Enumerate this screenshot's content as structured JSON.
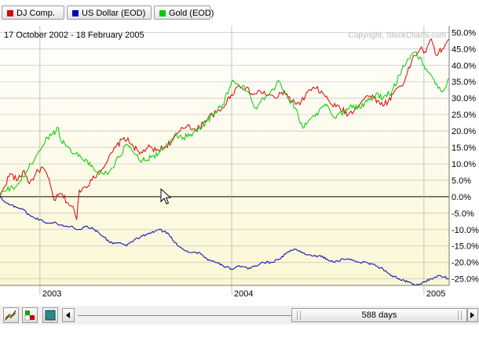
{
  "legend": [
    {
      "label": "DJ Comp.",
      "color": "#dd0000"
    },
    {
      "label": "US Dollar (EOD)",
      "color": "#0000b4"
    },
    {
      "label": "Gold (EOD)",
      "color": "#00cc00"
    }
  ],
  "header": {
    "date_range": "17 October 2002 - 18 February 2005",
    "copyright": "Copyright, StockCharts.com"
  },
  "toolbar": {
    "period_label": "588 days",
    "left_arrow_icon": "arrow-left-icon",
    "right_arrow_icon": "arrow-right-icon",
    "tool_icons": [
      "line-chart-icon",
      "color-swatch-icon",
      "square-icon"
    ]
  },
  "chart_data": {
    "type": "line",
    "title": "",
    "xlabel": "",
    "ylabel": "",
    "x_range": [
      "2002-10-17",
      "2005-02-18"
    ],
    "x_tick_labels": [
      "2003",
      "2004",
      "2005"
    ],
    "y_ticks": [
      50,
      45,
      40,
      35,
      30,
      25,
      20,
      15,
      10,
      5,
      0,
      -5,
      -10,
      -15,
      -20,
      -25
    ],
    "y_tick_labels": [
      "50.0%",
      "45.0%",
      "40.0%",
      "35.0%",
      "30.0%",
      "25.0%",
      "20.0%",
      "15.0%",
      "10.0%",
      "5.0%",
      "0.0%",
      "-5.0%",
      "-10.0%",
      "-15.0%",
      "-20.0%",
      "-25.0%"
    ],
    "ylim": [
      -27,
      52
    ],
    "grid": true,
    "legend_position": "top-left",
    "series": [
      {
        "name": "DJ Comp.",
        "color": "#dd0000",
        "points": [
          [
            "2002-10-17",
            0
          ],
          [
            "2002-10-25",
            3
          ],
          [
            "2002-11-05",
            7
          ],
          [
            "2002-11-20",
            5
          ],
          [
            "2002-12-02",
            8
          ],
          [
            "2002-12-12",
            4
          ],
          [
            "2002-12-24",
            7
          ],
          [
            "2003-01-06",
            9
          ],
          [
            "2003-01-16",
            6
          ],
          [
            "2003-01-28",
            -1
          ],
          [
            "2003-02-10",
            1
          ],
          [
            "2003-02-24",
            -2
          ],
          [
            "2003-03-07",
            -4
          ],
          [
            "2003-03-12",
            -7
          ],
          [
            "2003-03-17",
            2
          ],
          [
            "2003-03-28",
            3
          ],
          [
            "2003-04-10",
            5
          ],
          [
            "2003-04-25",
            8
          ],
          [
            "2003-05-10",
            11
          ],
          [
            "2003-05-25",
            15
          ],
          [
            "2003-06-10",
            18
          ],
          [
            "2003-06-25",
            16
          ],
          [
            "2003-07-10",
            13
          ],
          [
            "2003-07-25",
            15
          ],
          [
            "2003-08-10",
            14
          ],
          [
            "2003-08-25",
            15
          ],
          [
            "2003-09-10",
            17
          ],
          [
            "2003-09-25",
            20
          ],
          [
            "2003-10-10",
            22
          ],
          [
            "2003-10-25",
            20
          ],
          [
            "2003-11-10",
            23
          ],
          [
            "2003-11-25",
            25
          ],
          [
            "2003-12-10",
            26
          ],
          [
            "2003-12-31",
            31
          ],
          [
            "2004-01-15",
            34
          ],
          [
            "2004-01-28",
            33
          ],
          [
            "2004-02-10",
            31
          ],
          [
            "2004-02-25",
            32
          ],
          [
            "2004-03-10",
            31
          ],
          [
            "2004-03-25",
            30
          ],
          [
            "2004-04-10",
            32
          ],
          [
            "2004-04-25",
            29
          ],
          [
            "2004-05-10",
            28
          ],
          [
            "2004-05-25",
            32
          ],
          [
            "2004-06-10",
            33
          ],
          [
            "2004-06-25",
            31
          ],
          [
            "2004-07-10",
            28
          ],
          [
            "2004-07-25",
            27
          ],
          [
            "2004-08-10",
            25
          ],
          [
            "2004-08-25",
            27
          ],
          [
            "2004-09-10",
            30
          ],
          [
            "2004-09-25",
            31
          ],
          [
            "2004-10-10",
            28
          ],
          [
            "2004-10-25",
            29
          ],
          [
            "2004-11-10",
            33
          ],
          [
            "2004-11-25",
            35
          ],
          [
            "2004-12-10",
            42
          ],
          [
            "2004-12-25",
            45
          ],
          [
            "2005-01-05",
            44
          ],
          [
            "2005-01-15",
            48
          ],
          [
            "2005-01-25",
            43
          ],
          [
            "2005-02-05",
            45
          ],
          [
            "2005-02-18",
            48
          ]
        ]
      },
      {
        "name": "US Dollar (EOD)",
        "color": "#0000b4",
        "points": [
          [
            "2002-10-17",
            0
          ],
          [
            "2002-10-30",
            -2
          ],
          [
            "2002-11-15",
            -3
          ],
          [
            "2002-12-01",
            -4
          ],
          [
            "2002-12-15",
            -6
          ],
          [
            "2003-01-01",
            -7
          ],
          [
            "2003-01-15",
            -8
          ],
          [
            "2003-02-01",
            -8
          ],
          [
            "2003-02-15",
            -9
          ],
          [
            "2003-03-01",
            -9
          ],
          [
            "2003-03-15",
            -10
          ],
          [
            "2003-04-01",
            -9
          ],
          [
            "2003-04-15",
            -10
          ],
          [
            "2003-05-01",
            -12
          ],
          [
            "2003-05-15",
            -14
          ],
          [
            "2003-06-01",
            -14
          ],
          [
            "2003-06-15",
            -15
          ],
          [
            "2003-07-01",
            -13
          ],
          [
            "2003-07-15",
            -12
          ],
          [
            "2003-08-01",
            -11
          ],
          [
            "2003-08-15",
            -10
          ],
          [
            "2003-09-01",
            -11
          ],
          [
            "2003-09-15",
            -14
          ],
          [
            "2003-10-01",
            -16
          ],
          [
            "2003-10-15",
            -17
          ],
          [
            "2003-11-01",
            -17
          ],
          [
            "2003-11-15",
            -19
          ],
          [
            "2003-12-01",
            -20
          ],
          [
            "2003-12-15",
            -21
          ],
          [
            "2004-01-01",
            -22
          ],
          [
            "2004-01-15",
            -21
          ],
          [
            "2004-02-01",
            -22
          ],
          [
            "2004-02-15",
            -21
          ],
          [
            "2004-03-01",
            -20
          ],
          [
            "2004-03-15",
            -20
          ],
          [
            "2004-04-01",
            -19
          ],
          [
            "2004-04-15",
            -17
          ],
          [
            "2004-05-01",
            -16
          ],
          [
            "2004-05-15",
            -17
          ],
          [
            "2004-06-01",
            -18
          ],
          [
            "2004-06-15",
            -18
          ],
          [
            "2004-07-01",
            -19
          ],
          [
            "2004-07-15",
            -20
          ],
          [
            "2004-08-01",
            -19
          ],
          [
            "2004-08-15",
            -19
          ],
          [
            "2004-09-01",
            -20
          ],
          [
            "2004-09-15",
            -20
          ],
          [
            "2004-10-01",
            -21
          ],
          [
            "2004-10-15",
            -22
          ],
          [
            "2004-11-01",
            -24
          ],
          [
            "2004-11-15",
            -25
          ],
          [
            "2004-12-01",
            -26
          ],
          [
            "2004-12-15",
            -27
          ],
          [
            "2005-01-01",
            -26
          ],
          [
            "2005-01-15",
            -25
          ],
          [
            "2005-02-01",
            -24
          ],
          [
            "2005-02-18",
            -25
          ]
        ]
      },
      {
        "name": "Gold (EOD)",
        "color": "#00cc00",
        "points": [
          [
            "2002-10-17",
            1
          ],
          [
            "2002-10-30",
            2
          ],
          [
            "2002-11-15",
            3
          ],
          [
            "2002-12-01",
            6
          ],
          [
            "2002-12-15",
            10
          ],
          [
            "2003-01-01",
            14
          ],
          [
            "2003-01-15",
            18
          ],
          [
            "2003-01-25",
            19
          ],
          [
            "2003-02-05",
            21
          ],
          [
            "2003-02-10",
            17
          ],
          [
            "2003-02-25",
            15
          ],
          [
            "2003-03-10",
            13
          ],
          [
            "2003-03-20",
            12
          ],
          [
            "2003-04-01",
            11
          ],
          [
            "2003-04-15",
            8
          ],
          [
            "2003-05-01",
            7
          ],
          [
            "2003-05-15",
            8
          ],
          [
            "2003-06-01",
            12
          ],
          [
            "2003-06-15",
            16
          ],
          [
            "2003-07-01",
            13
          ],
          [
            "2003-07-15",
            11
          ],
          [
            "2003-08-01",
            12
          ],
          [
            "2003-08-15",
            13
          ],
          [
            "2003-09-01",
            16
          ],
          [
            "2003-09-15",
            19
          ],
          [
            "2003-10-01",
            18
          ],
          [
            "2003-10-15",
            19
          ],
          [
            "2003-11-01",
            21
          ],
          [
            "2003-11-15",
            23
          ],
          [
            "2003-12-01",
            26
          ],
          [
            "2003-12-15",
            28
          ],
          [
            "2004-01-01",
            35
          ],
          [
            "2004-01-15",
            34
          ],
          [
            "2004-02-01",
            32
          ],
          [
            "2004-02-15",
            27
          ],
          [
            "2004-03-01",
            30
          ],
          [
            "2004-03-15",
            32
          ],
          [
            "2004-04-01",
            35
          ],
          [
            "2004-04-15",
            31
          ],
          [
            "2004-05-01",
            27
          ],
          [
            "2004-05-15",
            21
          ],
          [
            "2004-06-01",
            24
          ],
          [
            "2004-06-15",
            26
          ],
          [
            "2004-07-01",
            28
          ],
          [
            "2004-07-15",
            24
          ],
          [
            "2004-08-01",
            26
          ],
          [
            "2004-08-15",
            28
          ],
          [
            "2004-09-01",
            27
          ],
          [
            "2004-09-15",
            29
          ],
          [
            "2004-10-01",
            31
          ],
          [
            "2004-10-15",
            30
          ],
          [
            "2004-11-01",
            32
          ],
          [
            "2004-11-15",
            37
          ],
          [
            "2004-12-01",
            42
          ],
          [
            "2004-12-15",
            44
          ],
          [
            "2005-01-01",
            40
          ],
          [
            "2005-01-15",
            37
          ],
          [
            "2005-01-28",
            33
          ],
          [
            "2005-02-05",
            32
          ],
          [
            "2005-02-18",
            36
          ]
        ]
      }
    ]
  }
}
